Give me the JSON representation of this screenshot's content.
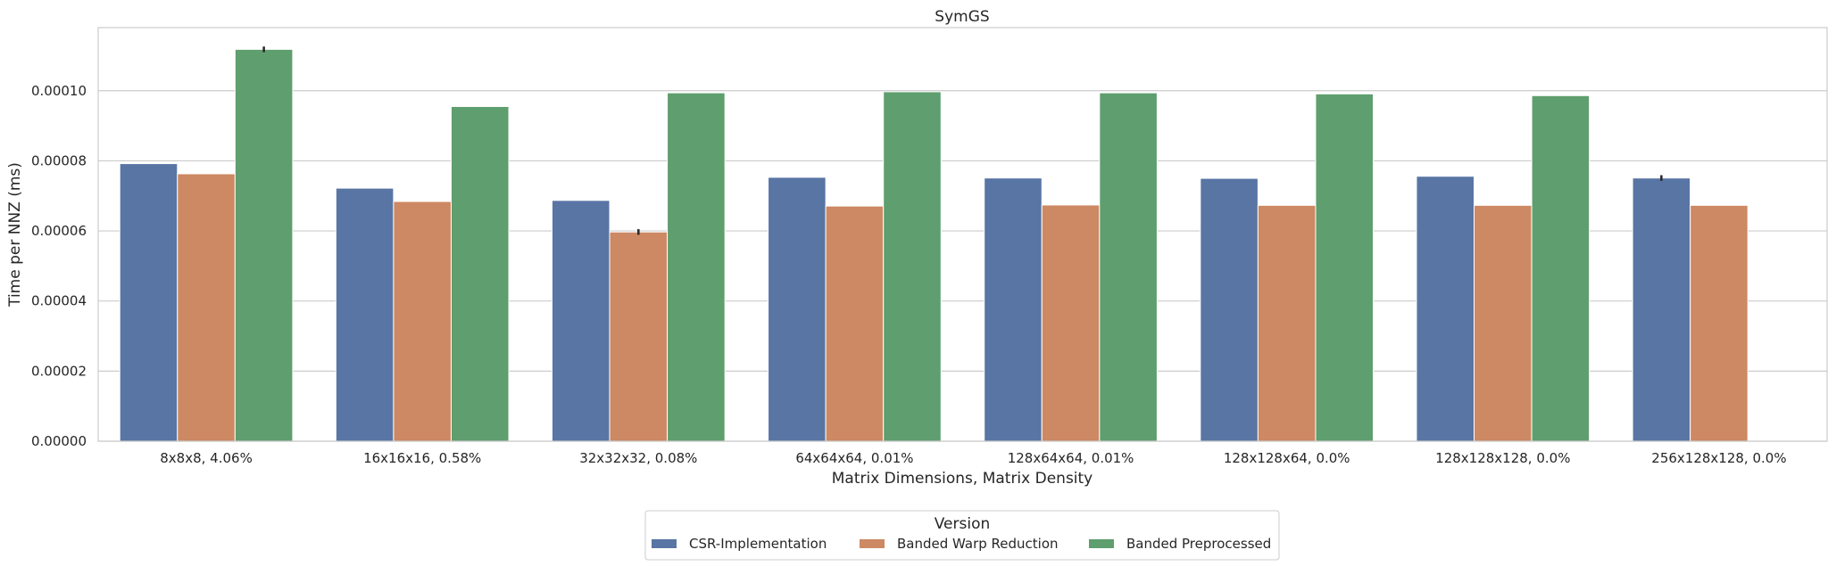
{
  "chart_data": {
    "type": "bar",
    "title": "SymGS",
    "xlabel": "Matrix Dimensions, Matrix Density",
    "ylabel": "Time per NNZ (ms)",
    "ylim": [
      0,
      0.000118
    ],
    "yticks": [
      "0.00000",
      "0.00002",
      "0.00004",
      "0.00006",
      "0.00008",
      "0.00010"
    ],
    "ytick_values": [
      0,
      2e-05,
      4e-05,
      6e-05,
      8e-05,
      0.0001
    ],
    "grid": true,
    "categories": [
      "8x8x8, 4.06%",
      "16x16x16, 0.58%",
      "32x32x32, 0.08%",
      "64x64x64, 0.01%",
      "128x64x64, 0.01%",
      "128x128x64, 0.0%",
      "128x128x128, 0.0%",
      "256x128x128, 0.0%"
    ],
    "series": [
      {
        "name": "CSR-Implementation",
        "color": "#5875a4",
        "values": [
          7.92e-05,
          7.22e-05,
          6.87e-05,
          7.53e-05,
          7.51e-05,
          7.5e-05,
          7.56e-05,
          7.51e-05
        ],
        "errors": [
          0,
          0,
          0,
          0,
          0,
          0,
          0,
          8e-07
        ]
      },
      {
        "name": "Banded Warp Reduction",
        "color": "#cc8963",
        "values": [
          7.63e-05,
          6.84e-05,
          5.97e-05,
          6.71e-05,
          6.74e-05,
          6.73e-05,
          6.73e-05,
          6.73e-05
        ],
        "errors": [
          0,
          0,
          8e-07,
          0,
          0,
          0,
          0,
          0
        ]
      },
      {
        "name": "Banded Preprocessed",
        "color": "#5f9e6e",
        "values": [
          0.0001118,
          9.55e-05,
          9.94e-05,
          9.97e-05,
          9.94e-05,
          9.91e-05,
          9.86e-05,
          null
        ],
        "errors": [
          8e-07,
          0,
          0,
          0,
          0,
          0,
          0,
          0
        ]
      }
    ],
    "legend": {
      "title": "Version",
      "placement": "bottom-center"
    }
  }
}
